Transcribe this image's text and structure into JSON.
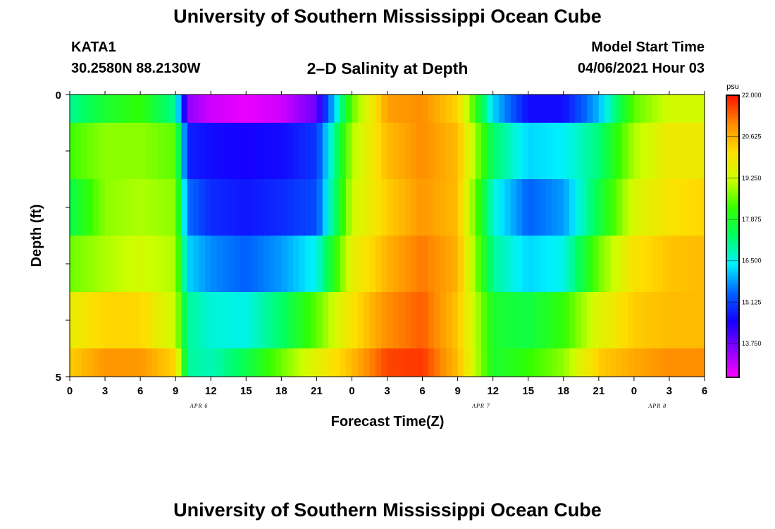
{
  "header": {
    "title": "University of Southern Mississippi Ocean Cube",
    "station_id": "KATA1",
    "station_coords": "30.2580N  88.2130W",
    "plot_title": "2–D Salinity at Depth",
    "model_start_label": "Model Start Time",
    "model_start_value": "04/06/2021 Hour 03"
  },
  "footer": {
    "title": "University of Southern Mississippi Ocean Cube"
  },
  "chart_data": {
    "type": "heatmap",
    "title": "2–D Salinity at Depth",
    "xlabel": "Forecast Time(Z)",
    "ylabel": "Depth (ft)",
    "x_ticks": [
      "0",
      "3",
      "6",
      "9",
      "12",
      "15",
      "18",
      "21",
      "0",
      "3",
      "6",
      "9",
      "12",
      "15",
      "18",
      "21",
      "0",
      "3",
      "6"
    ],
    "x_hours_range": [
      0,
      54
    ],
    "date_labels": [
      {
        "label": "APR 6",
        "hour": 11
      },
      {
        "label": "APR 7",
        "hour": 35
      },
      {
        "label": "APR 8",
        "hour": 50
      }
    ],
    "y_ticks": [
      "0",
      "5"
    ],
    "ylim": [
      0,
      5
    ],
    "y_reversed": true,
    "depth_bins": [
      {
        "top": 0,
        "bottom": 0.5
      },
      {
        "top": 0.5,
        "bottom": 1.5
      },
      {
        "top": 1.5,
        "bottom": 2.5
      },
      {
        "top": 2.5,
        "bottom": 3.5
      },
      {
        "top": 3.5,
        "bottom": 4.5
      },
      {
        "top": 4.5,
        "bottom": 5
      }
    ],
    "colorbar": {
      "unit": "psu",
      "min": 12.625,
      "max": 22.0,
      "tick_values": [
        22.0,
        20.625,
        19.25,
        17.875,
        16.5,
        15.125,
        13.75
      ],
      "tick_labels": [
        "22.000",
        "20.625",
        "19.250",
        "17.875",
        "16.500",
        "15.125",
        "13.750"
      ],
      "colors_low_to_high": [
        "#ff00ff",
        "#8800ff",
        "#1400ff",
        "#0064ff",
        "#00f0ff",
        "#00ff64",
        "#33ff00",
        "#ccff00",
        "#ffdd00",
        "#ff8800",
        "#ff1100"
      ]
    },
    "hours": [
      0,
      3,
      6,
      9,
      10,
      12,
      15,
      18,
      21,
      24,
      27,
      30,
      33,
      36,
      39,
      42,
      45,
      48,
      51,
      54
    ],
    "salinity_psu": [
      [
        17.0,
        17.8,
        18.2,
        17.0,
        13.5,
        13.0,
        12.8,
        13.0,
        13.8,
        18.5,
        20.8,
        21.0,
        20.2,
        16.2,
        14.6,
        14.6,
        16.0,
        18.5,
        19.3,
        19.3
      ],
      [
        18.3,
        18.8,
        18.8,
        18.5,
        14.8,
        14.6,
        14.5,
        14.6,
        15.0,
        19.0,
        20.5,
        21.0,
        20.5,
        17.3,
        16.2,
        16.4,
        17.2,
        19.0,
        19.8,
        19.8
      ],
      [
        17.5,
        18.8,
        19.0,
        18.8,
        15.5,
        14.9,
        14.7,
        14.9,
        15.2,
        19.2,
        20.3,
        20.9,
        20.5,
        16.6,
        15.4,
        15.8,
        17.6,
        19.4,
        20.0,
        20.2
      ],
      [
        18.6,
        19.0,
        19.3,
        19.0,
        16.2,
        15.7,
        15.4,
        15.8,
        16.5,
        19.6,
        20.6,
        21.2,
        20.6,
        17.0,
        16.2,
        16.5,
        18.6,
        20.0,
        20.4,
        20.5
      ],
      [
        19.7,
        20.2,
        20.2,
        19.2,
        17.0,
        16.6,
        16.5,
        17.3,
        18.5,
        20.0,
        21.0,
        21.4,
        20.4,
        17.8,
        17.6,
        18.2,
        19.5,
        20.3,
        20.5,
        20.5
      ],
      [
        20.3,
        20.9,
        20.9,
        20.2,
        17.0,
        16.8,
        17.5,
        18.6,
        19.6,
        20.5,
        21.6,
        21.7,
        20.5,
        17.8,
        18.2,
        18.8,
        20.3,
        20.7,
        21.0,
        21.0
      ]
    ]
  }
}
